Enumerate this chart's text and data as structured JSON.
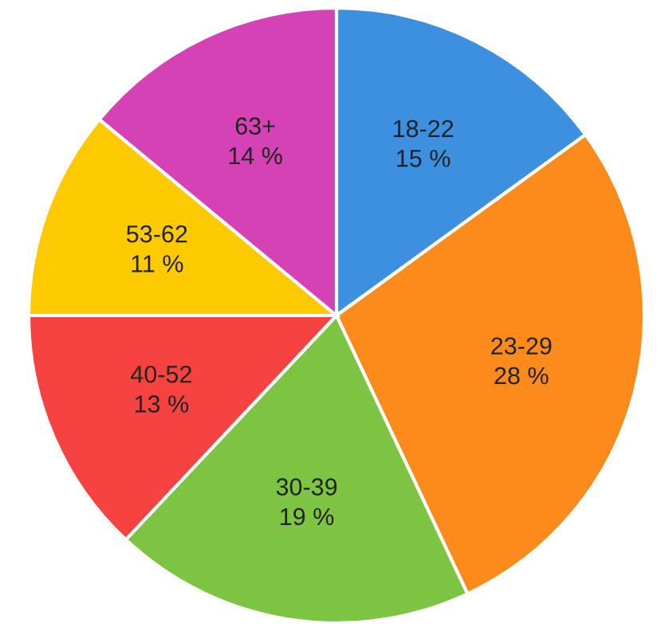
{
  "chart_data": {
    "type": "pie",
    "categories": [
      "18-22",
      "23-29",
      "30-39",
      "40-52",
      "53-62",
      "63+"
    ],
    "values": [
      15,
      28,
      19,
      13,
      11,
      14
    ],
    "value_labels": [
      "15 %",
      "28 %",
      "19 %",
      "13 %",
      "11 %",
      "14 %"
    ],
    "colors": [
      "#3d8fdf",
      "#fd8b1c",
      "#7dc442",
      "#f74340",
      "#fdca00",
      "#d442b6"
    ],
    "legend": false
  }
}
